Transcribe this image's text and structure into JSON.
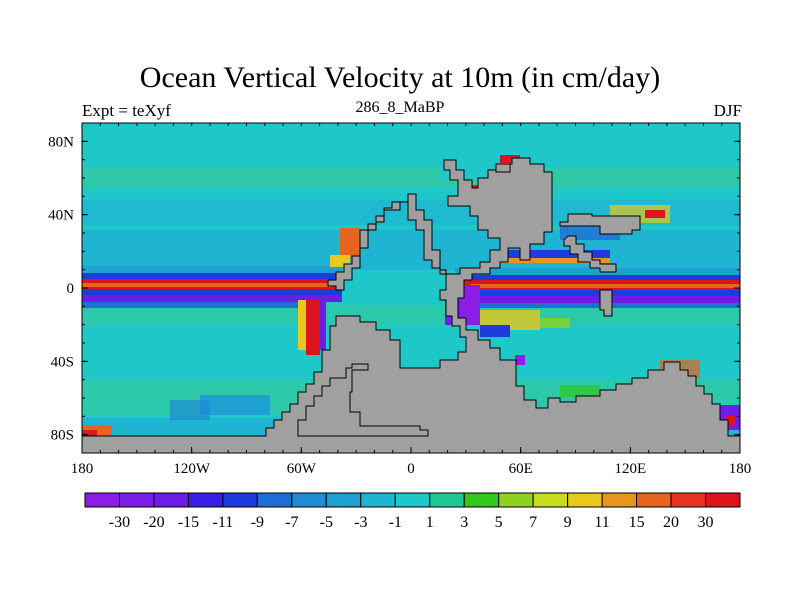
{
  "title": "Ocean Vertical Velocity at 10m (in cm/day)",
  "left_title": "Expt = teXyf",
  "center_title": "286_8_MaBP",
  "right_title": "DJF",
  "lon_labels": [
    "180",
    "120W",
    "60W",
    "0",
    "60E",
    "120E",
    "180"
  ],
  "lat_labels": [
    "80N",
    "40N",
    "0",
    "40S",
    "80S"
  ],
  "colorbar": {
    "labels": [
      "-30",
      "-20",
      "-15",
      "-11",
      "-9",
      "-7",
      "-5",
      "-3",
      "-1",
      "1",
      "3",
      "5",
      "7",
      "9",
      "11",
      "15",
      "20",
      "30"
    ],
    "colors": [
      "#8a1ee6",
      "#7a1ee6",
      "#6a1ee6",
      "#3b1ee6",
      "#1e3cdc",
      "#1e6ed6",
      "#1e8cd6",
      "#1ea0d2",
      "#1eb4d2",
      "#1ec8c8",
      "#1ec896",
      "#32c81e",
      "#8cd21e",
      "#c8dc1e",
      "#e6c81e",
      "#e6961e",
      "#e6641e",
      "#e6321e",
      "#dc141e"
    ]
  },
  "colors": {
    "land": "#a0a0a0",
    "ocean_background": "#1ec8c8"
  }
}
